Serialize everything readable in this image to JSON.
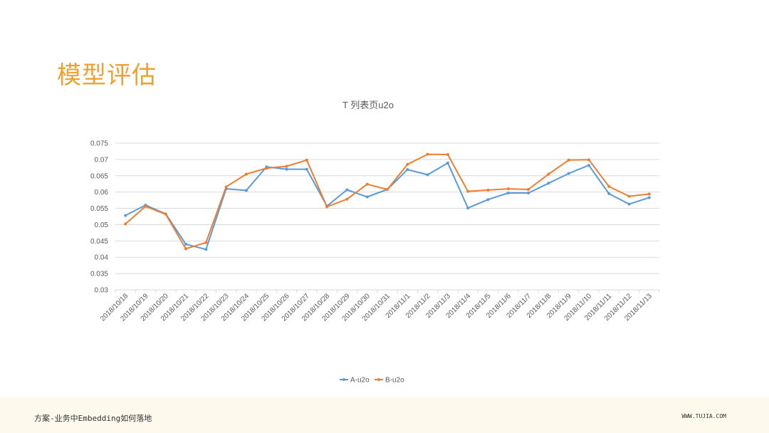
{
  "page": {
    "title": "模型评估"
  },
  "footer": {
    "left_text": "方案-业务中Embedding如何落地",
    "right_text": "WWW.TUJIA.COM"
  },
  "colors": {
    "title": "#f0a030",
    "series_a": "#5b9bd5",
    "series_b": "#ed7d31",
    "grid": "#d9d9d9",
    "footer_bg": "#fdf9ec"
  },
  "chart_data": {
    "type": "line",
    "title": "T 列表页u2o",
    "xlabel": "",
    "ylabel": "",
    "ylim": [
      0.03,
      0.075
    ],
    "yticks": [
      "0.075",
      "0.07",
      "0.065",
      "0.06",
      "0.055",
      "0.05",
      "0.045",
      "0.04",
      "0.035",
      "0.03"
    ],
    "grid": true,
    "legend_position": "bottom",
    "categories": [
      "2018/10/18",
      "2018/10/19",
      "2018/10/20",
      "2018/10/21",
      "2018/10/22",
      "2018/10/23",
      "2018/10/24",
      "2018/10/25",
      "2018/10/26",
      "2018/10/27",
      "2018/10/28",
      "2018/10/29",
      "2018/10/30",
      "2018/10/31",
      "2018/11/1",
      "2018/11/2",
      "2018/11/3",
      "2018/11/4",
      "2018/11/5",
      "2018/11/6",
      "2018/11/7",
      "2018/11/8",
      "2018/11/9",
      "2018/11/10",
      "2018/11/11",
      "2018/11/12",
      "2018/11/13"
    ],
    "series": [
      {
        "name": "A-u2o",
        "values": [
          0.0528,
          0.056,
          0.0533,
          0.044,
          0.0424,
          0.061,
          0.0605,
          0.0677,
          0.067,
          0.067,
          0.0557,
          0.0607,
          0.0585,
          0.0608,
          0.0669,
          0.0653,
          0.0689,
          0.0551,
          0.0577,
          0.0597,
          0.0597,
          0.0627,
          0.0657,
          0.0682,
          0.0595,
          0.0563,
          0.0583
        ]
      },
      {
        "name": "B-u2o",
        "values": [
          0.0502,
          0.0556,
          0.0532,
          0.0426,
          0.0445,
          0.0616,
          0.0655,
          0.0673,
          0.0679,
          0.0698,
          0.0555,
          0.0578,
          0.0624,
          0.0608,
          0.0685,
          0.0716,
          0.0715,
          0.0602,
          0.0606,
          0.061,
          0.0608,
          0.0655,
          0.0698,
          0.0699,
          0.0617,
          0.0587,
          0.0594
        ]
      }
    ]
  }
}
